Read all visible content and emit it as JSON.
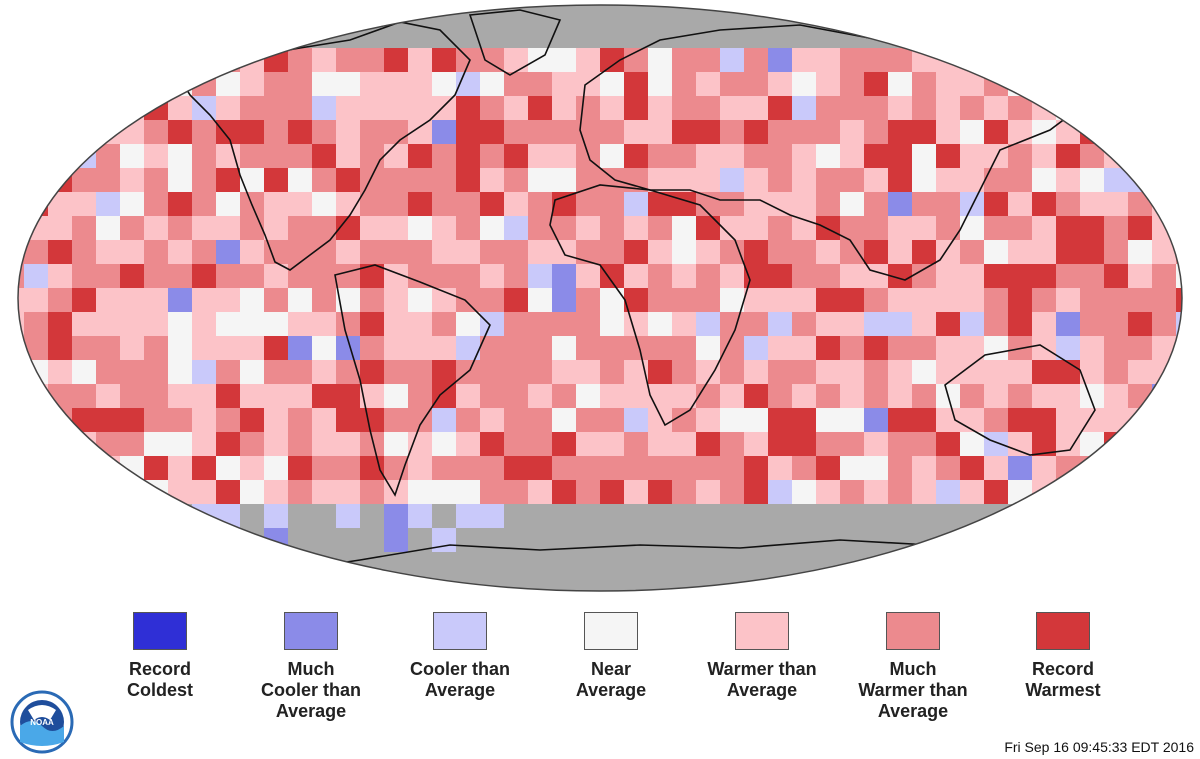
{
  "legend": {
    "items": [
      {
        "label": "Record\nColdest",
        "color": "#2f2fd6"
      },
      {
        "label": "Much\nCooler than\nAverage",
        "color": "#8b8be8"
      },
      {
        "label": "Cooler than\nAverage",
        "color": "#c9c9fa"
      },
      {
        "label": "Near\nAverage",
        "color": "#f5f5f5"
      },
      {
        "label": "Warmer than\nAverage",
        "color": "#fcc3c8"
      },
      {
        "label": "Much\nWarmer than\nAverage",
        "color": "#ec8a8e"
      },
      {
        "label": "Record\nWarmest",
        "color": "#d3373a"
      }
    ]
  },
  "colors": {
    "no_data": "#a9a9a9",
    "coastline": "#111111"
  },
  "logo": {
    "icon": "noaa-logo-icon",
    "text": "NOAA"
  },
  "timestamp": "Fri Sep 16 09:45:33 EDT 2016"
}
